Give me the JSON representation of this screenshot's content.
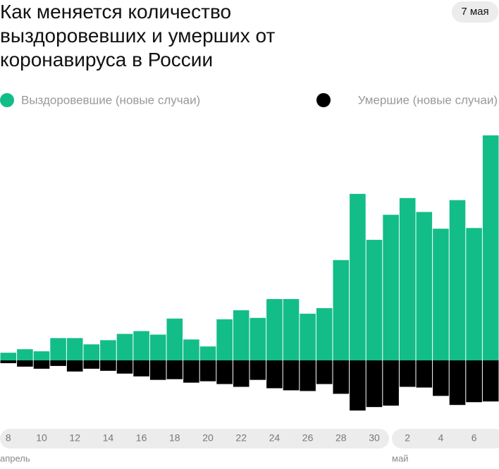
{
  "chart_data": {
    "type": "bar",
    "title": "Как меняется количество выздоровевших и умерших от коронавируса в России",
    "date_badge": "7 мая",
    "categories": [
      "8",
      null,
      "10",
      null,
      "12",
      null,
      "14",
      null,
      "16",
      null,
      "18",
      null,
      "20",
      null,
      "22",
      null,
      "24",
      null,
      "26",
      null,
      "28",
      null,
      "30",
      null,
      "2",
      null,
      "4",
      null,
      "6",
      null
    ],
    "months": [
      "апрель",
      "май"
    ],
    "series": [
      {
        "name": "Выздоровевшие (новые случаи)",
        "color": "#13bd88",
        "values": [
          11,
          16,
          13,
          32,
          32,
          23,
          29,
          38,
          42,
          37,
          60,
          30,
          20,
          59,
          72,
          61,
          88,
          88,
          67,
          75,
          144,
          239,
          173,
          209,
          233,
          213,
          189,
          230,
          190,
          323
        ]
      },
      {
        "name": "Умершие (новые случаи)",
        "color": "#000000",
        "values": [
          -4,
          -9,
          -12,
          -8,
          -16,
          -12,
          -15,
          -19,
          -23,
          -28,
          -27,
          -32,
          -30,
          -34,
          -38,
          -28,
          -40,
          -43,
          -44,
          -34,
          -48,
          -72,
          -67,
          -65,
          -38,
          -39,
          -51,
          -64,
          -60,
          -59
        ]
      }
    ],
    "ylim": [
      -80,
      330
    ]
  }
}
